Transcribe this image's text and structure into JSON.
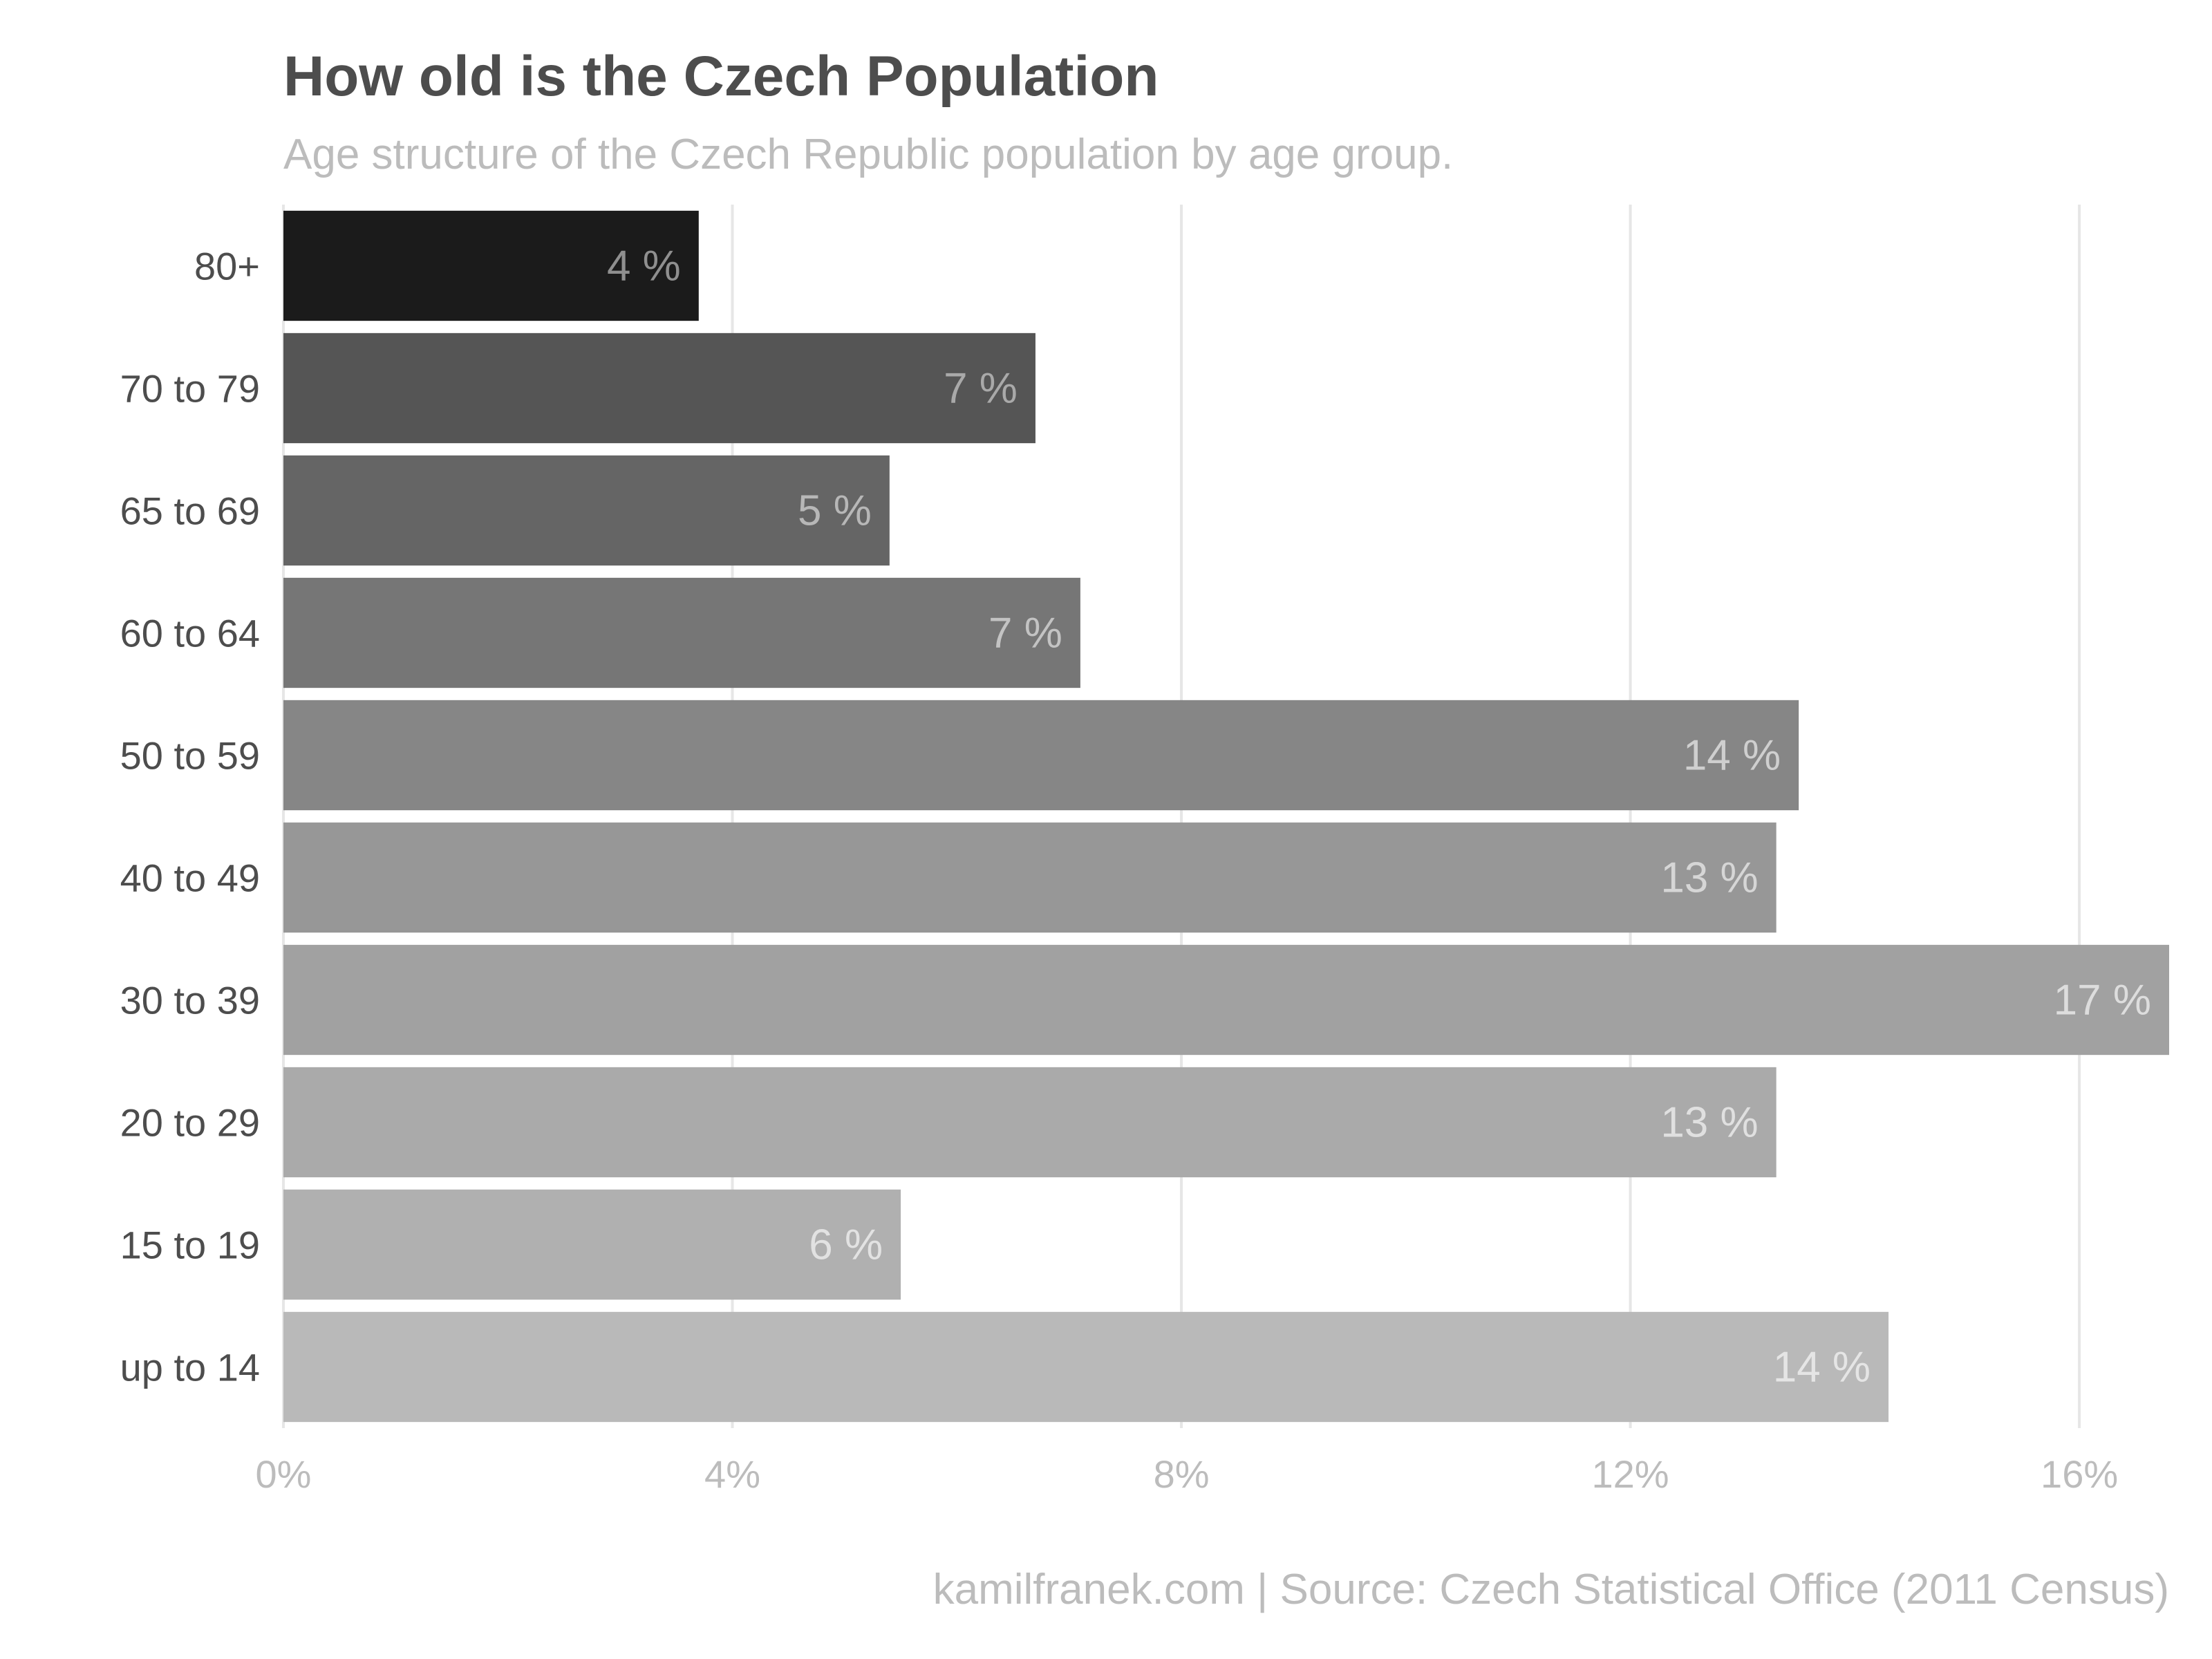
{
  "chart_data": {
    "type": "bar",
    "orientation": "horizontal",
    "title": "How old is the Czech Population",
    "subtitle": "Age structure of the Czech Republic population by age group.",
    "caption": "kamilfranek.com  |  Source: Czech Statistical Office (2011 Census)",
    "categories": [
      "80+",
      "70 to 79",
      "65 to 69",
      "60 to 64",
      "50 to 59",
      "40 to 49",
      "30 to 39",
      "20 to 29",
      "15 to 19",
      "up to 14"
    ],
    "values": [
      3.7,
      6.7,
      5.4,
      7.1,
      13.5,
      13.3,
      16.8,
      13.3,
      5.5,
      14.3
    ],
    "data_labels": [
      "4 %",
      "7 %",
      "5 %",
      "7 %",
      "14 %",
      "13 %",
      "17 %",
      "13 %",
      "6 %",
      "14 %"
    ],
    "bar_colors": [
      "#1b1b1b",
      "#555555",
      "#656565",
      "#767676",
      "#868686",
      "#979797",
      "#a1a1a1",
      "#aaaaaa",
      "#b0b0b0",
      "#b9b9b9"
    ],
    "label_colors": [
      "#8f8f8f",
      "#a9a9a9",
      "#b7b7b7",
      "#c3c3c3",
      "#cfcfcf",
      "#d6d6d6",
      "#dddddd",
      "#e0e0e0",
      "#e2e2e2",
      "#e5e5e5"
    ],
    "xlim": [
      0,
      16.8
    ],
    "xticks": [
      0,
      4,
      8,
      12,
      16
    ],
    "xtick_labels": [
      "0%",
      "4%",
      "8%",
      "12%",
      "16%"
    ],
    "xlabel": "",
    "ylabel": "",
    "grid": "vertical",
    "legend": "none"
  }
}
